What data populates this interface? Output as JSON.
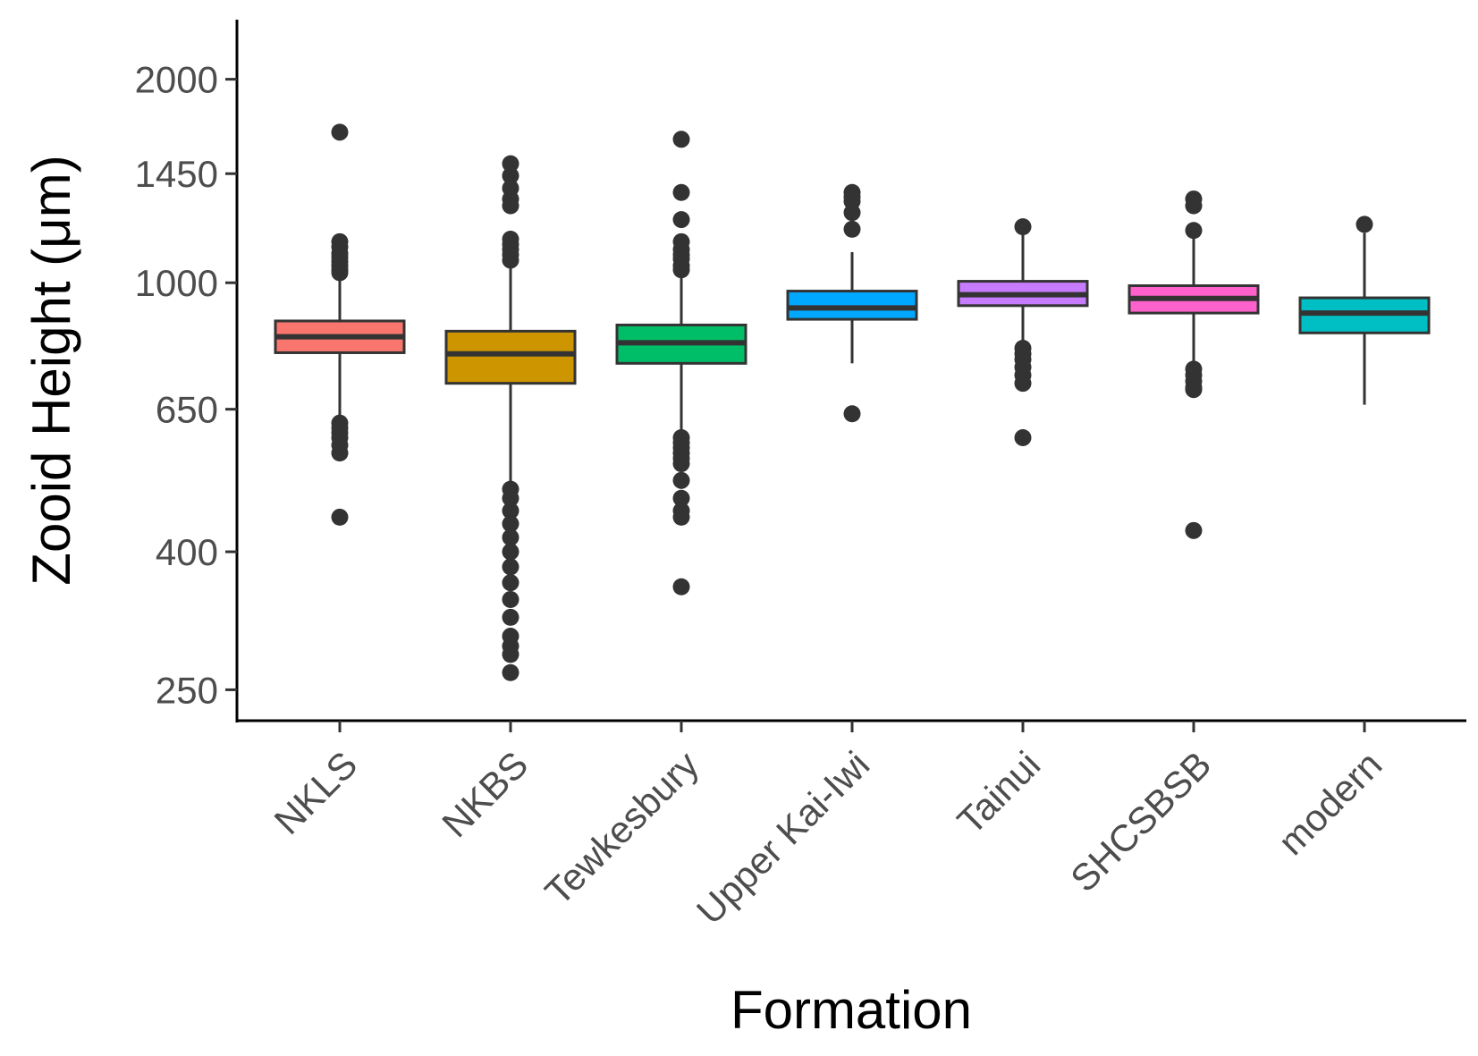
{
  "chart_data": {
    "type": "boxplot",
    "xlabel": "Formation",
    "ylabel": "Zooid Height (μm)",
    "y_scale": "log",
    "ylim": [
      225,
      2450
    ],
    "yticks": [
      250,
      400,
      650,
      1000,
      1450,
      2000
    ],
    "grid": false,
    "legend": "none",
    "categories": [
      "NKLS",
      "NKBS",
      "Tewkesbury",
      "Upper Kai-Iwi",
      "Tainui",
      "SHCSBSB",
      "modern"
    ],
    "boxes": [
      {
        "name": "NKLS",
        "color": "#F8766D",
        "whisker_low": 625,
        "q1": 788,
        "median": 832,
        "q3": 878,
        "whisker_high": 1030,
        "outliers": [
          1670,
          1150,
          1130,
          1105,
          1090,
          1075,
          1060,
          1045,
          1035,
          620,
          610,
          600,
          590,
          575,
          560,
          450
        ]
      },
      {
        "name": "NKBS",
        "color": "#CD9600",
        "whisker_low": 495,
        "q1": 710,
        "median": 785,
        "q3": 848,
        "whisker_high": 1065,
        "outliers": [
          1500,
          1440,
          1380,
          1330,
          1300,
          1160,
          1140,
          1120,
          1100,
          1080,
          495,
          480,
          460,
          440,
          420,
          400,
          380,
          360,
          340,
          320,
          300,
          290,
          282,
          265
        ]
      },
      {
        "name": "Tewkesbury",
        "color": "#00BE67",
        "whisker_low": 590,
        "q1": 760,
        "median": 815,
        "q3": 866,
        "whisker_high": 1040,
        "outliers": [
          1630,
          1360,
          1240,
          1150,
          1120,
          1100,
          1085,
          1060,
          1045,
          590,
          580,
          570,
          560,
          550,
          540,
          510,
          480,
          460,
          450,
          355
        ]
      },
      {
        "name": "Upper Kai-Iwi",
        "color": "#00A9FF",
        "whisker_low": 760,
        "q1": 883,
        "median": 918,
        "q3": 972,
        "whisker_high": 1110,
        "outliers": [
          1360,
          1340,
          1320,
          1270,
          1200,
          640
        ]
      },
      {
        "name": "Tainui",
        "color": "#C77CFF",
        "whisker_low": 808,
        "q1": 925,
        "median": 960,
        "q3": 1005,
        "whisker_high": 1205,
        "outliers": [
          1210,
          800,
          785,
          770,
          750,
          730,
          710,
          590
        ]
      },
      {
        "name": "SHCSBSB",
        "color": "#FF61CC",
        "whisker_low": 752,
        "q1": 902,
        "median": 948,
        "q3": 990,
        "whisker_high": 1200,
        "outliers": [
          1330,
          1300,
          1195,
          745,
          730,
          715,
          700,
          695,
          430
        ]
      },
      {
        "name": "modern",
        "color": "#00BFC4",
        "whisker_low": 660,
        "q1": 843,
        "median": 902,
        "q3": 950,
        "whisker_high": 1185,
        "outliers": [
          1220
        ]
      }
    ]
  }
}
